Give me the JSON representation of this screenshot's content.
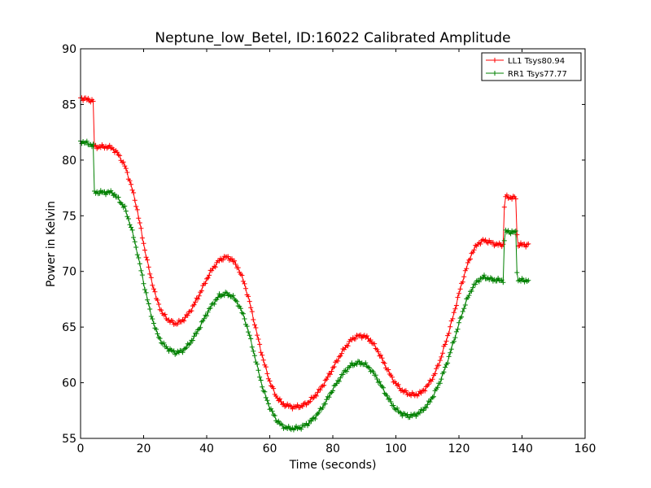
{
  "chart_data": {
    "type": "line",
    "title": "Neptune_low_Betel, ID:16022 Calibrated Amplitude",
    "xlabel": "Time (seconds)",
    "ylabel": "Power in Kelvin",
    "xlim": [
      0,
      160
    ],
    "ylim": [
      55,
      90
    ],
    "xticks": [
      0,
      20,
      40,
      60,
      80,
      100,
      120,
      140,
      160
    ],
    "yticks": [
      55,
      60,
      65,
      70,
      75,
      80,
      85,
      90
    ],
    "grid": false,
    "legend_position": "top-right",
    "series": [
      {
        "name": "LL1 Tsys80.94",
        "color": "#ff0000",
        "marker": "+",
        "x": [
          0,
          4.2,
          4.3,
          8,
          10,
          12,
          14,
          16,
          18,
          20,
          22,
          24,
          26,
          28,
          30,
          32,
          34,
          36,
          38,
          40,
          42,
          44,
          46,
          48,
          50,
          52,
          54,
          56,
          58,
          60,
          62,
          64,
          66,
          68,
          70,
          72,
          74,
          76,
          78,
          80,
          82,
          84,
          86,
          88,
          90,
          92,
          94,
          96,
          98,
          100,
          102,
          104,
          106,
          108,
          110,
          112,
          114,
          116,
          118,
          120,
          122,
          124,
          126,
          128,
          130,
          132,
          134,
          134.5,
          138,
          138.5,
          142
        ],
        "y": [
          85.6,
          85.3,
          81.2,
          81.2,
          81.1,
          80.5,
          79.5,
          77.8,
          75.5,
          72.5,
          69.8,
          67.6,
          66.2,
          65.6,
          65.3,
          65.5,
          66.1,
          67.0,
          68.1,
          69.3,
          70.3,
          71.0,
          71.3,
          71.1,
          70.3,
          68.9,
          66.8,
          64.3,
          62.0,
          60.1,
          58.8,
          58.1,
          57.9,
          57.8,
          57.9,
          58.2,
          58.7,
          59.4,
          60.3,
          61.3,
          62.3,
          63.2,
          63.9,
          64.2,
          64.2,
          63.8,
          63.0,
          61.9,
          60.8,
          59.9,
          59.3,
          59.0,
          58.9,
          59.1,
          59.7,
          60.6,
          62.0,
          63.8,
          65.8,
          68.0,
          70.0,
          71.6,
          72.5,
          72.8,
          72.6,
          72.4,
          72.4,
          76.7,
          76.6,
          72.4,
          72.4
        ]
      },
      {
        "name": "RR1 Tsys77.77",
        "color": "#008000",
        "marker": "+",
        "x": [
          0,
          4.2,
          4.3,
          8,
          10,
          12,
          14,
          16,
          18,
          20,
          22,
          24,
          26,
          28,
          30,
          32,
          34,
          36,
          38,
          40,
          42,
          44,
          46,
          48,
          50,
          52,
          54,
          56,
          58,
          60,
          62,
          64,
          66,
          68,
          70,
          72,
          74,
          76,
          78,
          80,
          82,
          84,
          86,
          88,
          90,
          92,
          94,
          96,
          98,
          100,
          102,
          104,
          106,
          108,
          110,
          112,
          114,
          116,
          118,
          120,
          122,
          124,
          126,
          128,
          130,
          132,
          134,
          134.5,
          138,
          138.5,
          142
        ],
        "y": [
          81.7,
          81.3,
          77.1,
          77.1,
          77.1,
          76.5,
          75.7,
          74.0,
          71.7,
          69.0,
          66.5,
          64.6,
          63.5,
          63.0,
          62.7,
          62.8,
          63.3,
          64.1,
          65.1,
          66.2,
          67.1,
          67.8,
          68.0,
          67.8,
          67.1,
          65.8,
          63.8,
          61.5,
          59.3,
          57.8,
          56.7,
          56.1,
          55.9,
          55.9,
          56.0,
          56.3,
          56.8,
          57.5,
          58.4,
          59.4,
          60.3,
          61.1,
          61.6,
          61.8,
          61.7,
          61.2,
          60.4,
          59.4,
          58.4,
          57.6,
          57.2,
          57.0,
          57.1,
          57.4,
          58.0,
          58.9,
          60.1,
          61.6,
          63.4,
          65.3,
          67.1,
          68.4,
          69.2,
          69.5,
          69.3,
          69.2,
          69.2,
          73.6,
          73.5,
          69.2,
          69.2
        ]
      }
    ]
  }
}
